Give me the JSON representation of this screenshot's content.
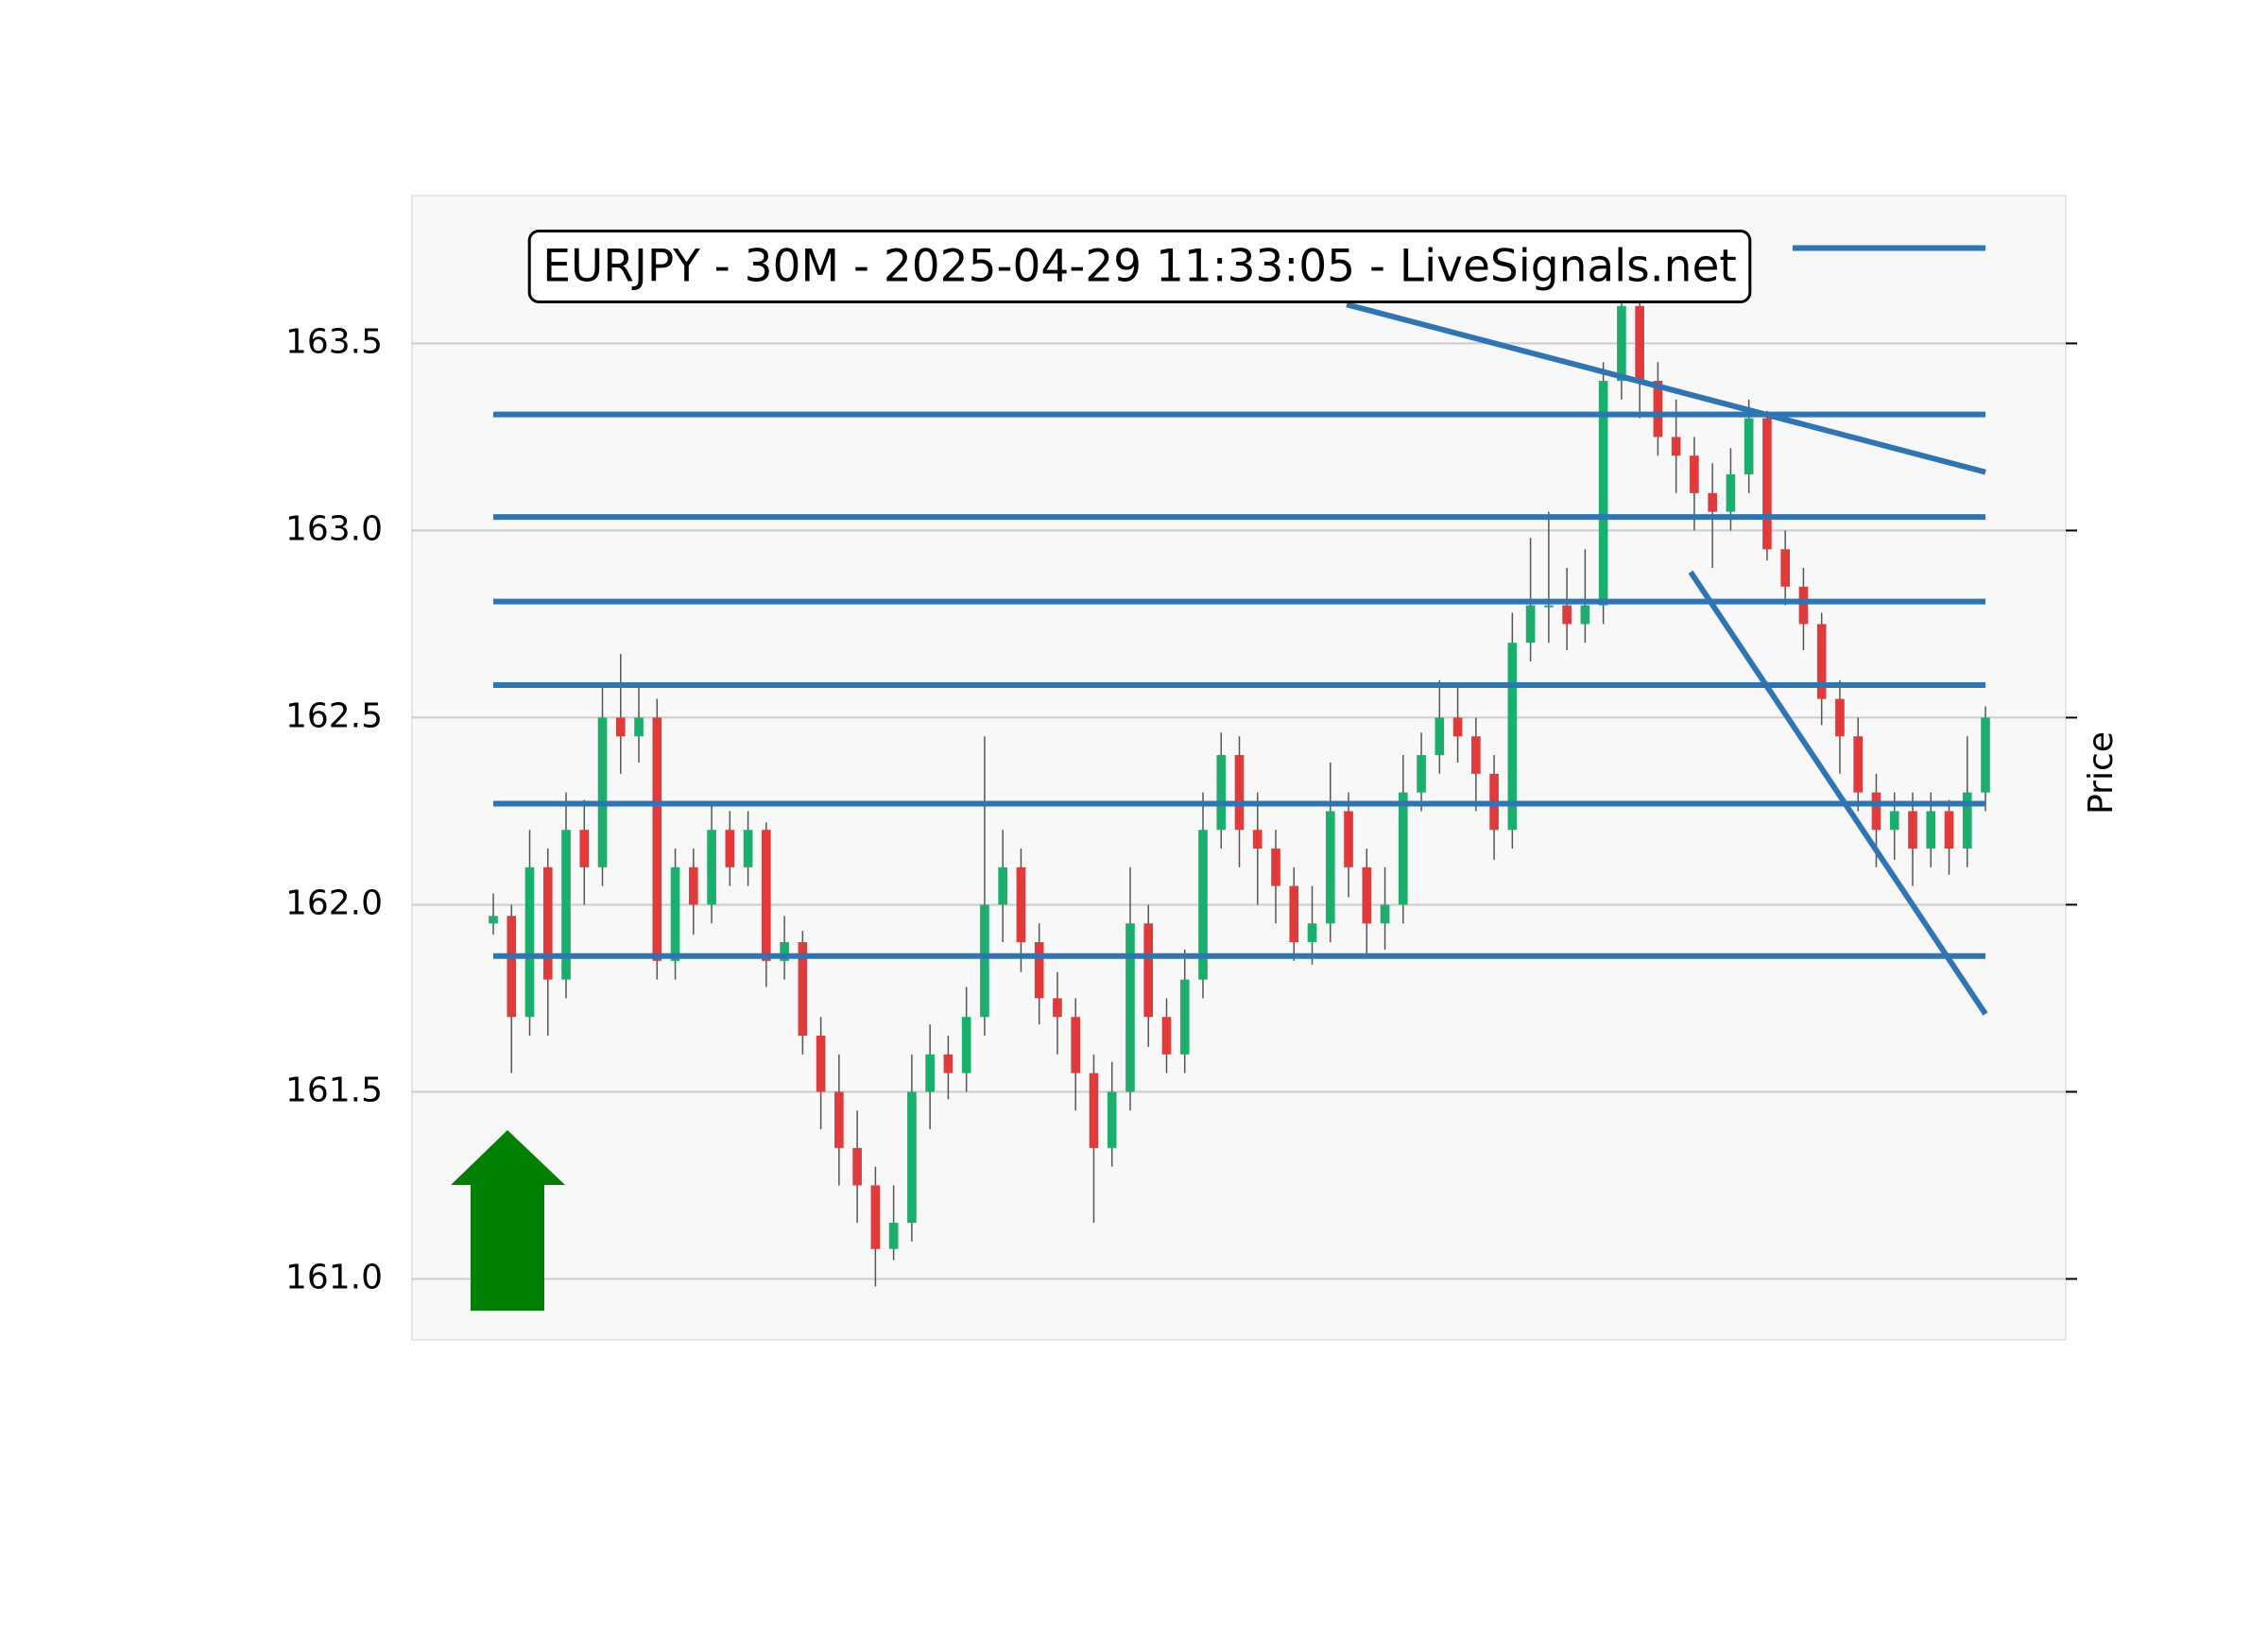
{
  "chart_data": {
    "type": "candlestick",
    "title": "EURJPY - 30M - 2025-04-29 11:33:05 - LiveSignals.net",
    "y_label": "Price",
    "ylim": [
      160.837,
      163.895
    ],
    "yticks": [
      {
        "value": 161,
        "label": "161.0"
      },
      161.5,
      {
        "value": 162,
        "label": "162.0"
      },
      162.5,
      {
        "value": 163,
        "label": "163.0"
      },
      163.5
    ],
    "grid": true,
    "up_color": "#1aaf6c",
    "down_color": "#e03a3a",
    "line_color": "#2e75b6",
    "open": [
      161.95,
      161.97,
      161.7,
      162.1,
      161.8,
      162.2,
      162.1,
      162.5,
      162.45,
      162.5,
      161.85,
      162.1,
      162.0,
      162.2,
      162.1,
      162.2,
      161.85,
      161.9,
      161.65,
      161.5,
      161.35,
      161.25,
      161.08,
      161.15,
      161.5,
      161.6,
      161.55,
      161.7,
      162.0,
      162.1,
      161.9,
      161.75,
      161.7,
      161.55,
      161.35,
      161.5,
      161.95,
      161.7,
      161.6,
      161.8,
      162.2,
      162.4,
      162.2,
      162.15,
      162.05,
      161.9,
      161.95,
      162.25,
      162.1,
      161.95,
      162.0,
      162.3,
      162.4,
      162.5,
      162.45,
      162.35,
      162.2,
      162.7,
      162.8,
      162.8,
      162.75,
      162.8,
      163.4,
      163.6,
      163.4,
      163.25,
      163.2,
      163.1,
      163.05,
      163.15,
      163.3,
      162.95,
      162.85,
      162.75,
      162.55,
      162.45,
      162.3,
      162.2,
      162.25,
      162.15,
      162.25,
      162.15,
      162.3
    ],
    "high": [
      162.03,
      162.0,
      162.2,
      162.15,
      162.3,
      162.28,
      162.58,
      162.67,
      162.58,
      162.55,
      162.15,
      162.15,
      162.27,
      162.25,
      162.25,
      162.22,
      161.97,
      161.93,
      161.7,
      161.6,
      161.45,
      161.3,
      161.25,
      161.6,
      161.68,
      161.65,
      161.78,
      162.45,
      162.2,
      162.15,
      161.95,
      161.82,
      161.75,
      161.6,
      161.58,
      162.1,
      162.0,
      161.75,
      161.88,
      162.3,
      162.46,
      162.45,
      162.3,
      162.2,
      162.1,
      162.05,
      162.38,
      162.3,
      162.15,
      162.1,
      162.4,
      162.46,
      162.6,
      162.58,
      162.5,
      162.4,
      162.78,
      162.98,
      163.05,
      162.9,
      162.95,
      163.45,
      163.72,
      163.62,
      163.45,
      163.35,
      163.25,
      163.18,
      163.22,
      163.35,
      163.32,
      163.0,
      162.9,
      162.78,
      162.6,
      162.5,
      162.35,
      162.3,
      162.3,
      162.3,
      162.28,
      162.45,
      162.53
    ],
    "low": [
      161.92,
      161.55,
      161.65,
      161.65,
      161.75,
      162.0,
      162.05,
      162.35,
      162.38,
      161.8,
      161.8,
      161.92,
      161.95,
      162.05,
      162.05,
      161.78,
      161.8,
      161.6,
      161.4,
      161.25,
      161.15,
      160.98,
      161.05,
      161.1,
      161.4,
      161.48,
      161.5,
      161.65,
      161.9,
      161.82,
      161.68,
      161.6,
      161.45,
      161.15,
      161.3,
      161.45,
      161.62,
      161.55,
      161.55,
      161.75,
      162.15,
      162.1,
      162.0,
      161.95,
      161.85,
      161.84,
      161.9,
      162.02,
      161.86,
      161.88,
      161.95,
      162.25,
      162.35,
      162.38,
      162.25,
      162.12,
      162.15,
      162.65,
      162.7,
      162.68,
      162.7,
      162.75,
      163.35,
      163.3,
      163.2,
      163.1,
      163.0,
      162.9,
      163.0,
      163.1,
      162.92,
      162.8,
      162.68,
      162.48,
      162.35,
      162.25,
      162.1,
      162.12,
      162.05,
      162.1,
      162.08,
      162.1,
      162.25
    ],
    "close": [
      161.97,
      161.7,
      162.1,
      161.8,
      162.2,
      162.1,
      162.5,
      162.45,
      162.5,
      161.85,
      162.1,
      162.0,
      162.2,
      162.1,
      162.2,
      161.85,
      161.9,
      161.65,
      161.5,
      161.35,
      161.25,
      161.08,
      161.15,
      161.5,
      161.6,
      161.55,
      161.7,
      162.0,
      162.1,
      161.9,
      161.75,
      161.7,
      161.55,
      161.35,
      161.5,
      161.95,
      161.7,
      161.6,
      161.8,
      162.2,
      162.4,
      162.2,
      162.15,
      162.05,
      161.9,
      161.95,
      162.25,
      162.1,
      161.95,
      162.0,
      162.3,
      162.4,
      162.5,
      162.45,
      162.35,
      162.2,
      162.7,
      162.8,
      162.8,
      162.75,
      162.8,
      163.4,
      163.6,
      163.4,
      163.25,
      163.2,
      163.1,
      163.05,
      163.15,
      163.3,
      162.95,
      162.85,
      162.75,
      162.55,
      162.45,
      162.3,
      162.2,
      162.25,
      162.15,
      162.25,
      162.15,
      162.3,
      162.5
    ],
    "lines": [
      {
        "x": [
          0,
          82
        ],
        "y": [
          163.31,
          163.31
        ]
      },
      {
        "x": [
          0,
          82
        ],
        "y": [
          163.036,
          163.036
        ]
      },
      {
        "x": [
          0,
          82
        ],
        "y": [
          162.81,
          162.81
        ]
      },
      {
        "x": [
          0,
          82
        ],
        "y": [
          162.587,
          162.587
        ]
      },
      {
        "x": [
          0,
          82
        ],
        "y": [
          162.27,
          162.27
        ]
      },
      {
        "x": [
          0,
          82
        ],
        "y": [
          161.863,
          161.863
        ]
      },
      {
        "x": [
          71.4,
          82
        ],
        "y": [
          163.755,
          163.755
        ]
      },
      {
        "x": [
          46.9,
          82
        ],
        "y": [
          163.604,
          163.156
        ]
      },
      {
        "x": [
          65.8,
          82
        ],
        "y": [
          162.889,
          161.708
        ]
      }
    ]
  }
}
